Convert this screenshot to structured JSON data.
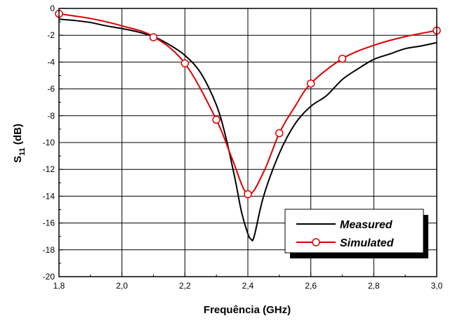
{
  "chart_data": {
    "type": "line",
    "title": "",
    "xlabel": "Frequência (GHz)",
    "ylabel_main": "S",
    "ylabel_sub": "11",
    "ylabel_unit": " (dB)",
    "xlim": [
      1.8,
      3.0
    ],
    "ylim": [
      -20,
      0
    ],
    "xticks": [
      1.8,
      2.0,
      2.2,
      2.4,
      2.6,
      2.8,
      3.0
    ],
    "xtick_labels": [
      "1,8",
      "2,0",
      "2,2",
      "2,4",
      "2,6",
      "2,8",
      "3,0"
    ],
    "yticks": [
      0,
      -2,
      -4,
      -6,
      -8,
      -10,
      -12,
      -14,
      -16,
      -18,
      -20
    ],
    "ytick_labels": [
      "0",
      "-2",
      "-4",
      "-6",
      "-8",
      "-10",
      "-12",
      "-14",
      "-16",
      "-18",
      "-20"
    ],
    "grid": true,
    "legend_position": "lower-right",
    "series": [
      {
        "name": "Measured",
        "color": "#000000",
        "marker": "none",
        "x": [
          1.8,
          1.85,
          1.9,
          1.95,
          2.0,
          2.05,
          2.1,
          2.15,
          2.2,
          2.25,
          2.3,
          2.33,
          2.36,
          2.38,
          2.4,
          2.41,
          2.42,
          2.45,
          2.5,
          2.55,
          2.6,
          2.65,
          2.7,
          2.75,
          2.8,
          2.85,
          2.9,
          2.95,
          3.0
        ],
        "y": [
          -0.8,
          -0.9,
          -1.05,
          -1.3,
          -1.5,
          -1.75,
          -2.1,
          -2.7,
          -3.5,
          -4.8,
          -7.2,
          -9.6,
          -12.8,
          -15.2,
          -16.8,
          -17.2,
          -17.0,
          -14.0,
          -10.8,
          -8.6,
          -7.3,
          -6.5,
          -5.3,
          -4.5,
          -3.8,
          -3.4,
          -3.0,
          -2.8,
          -2.55
        ]
      },
      {
        "name": "Simulated",
        "color": "#dd0000",
        "marker": "circle",
        "x": [
          1.8,
          1.9,
          2.0,
          2.1,
          2.2,
          2.3,
          2.35,
          2.4,
          2.45,
          2.5,
          2.55,
          2.6,
          2.7,
          2.8,
          2.9,
          3.0
        ],
        "y": [
          -0.4,
          -0.75,
          -1.3,
          -2.1,
          -4.1,
          -8.3,
          -11.2,
          -13.85,
          -12.2,
          -9.3,
          -7.3,
          -5.6,
          -3.75,
          -2.75,
          -2.1,
          -1.65
        ],
        "marker_x": [
          1.8,
          2.1,
          2.2,
          2.3,
          2.4,
          2.5,
          2.6,
          2.7,
          3.0
        ],
        "marker_y": [
          -0.4,
          -2.15,
          -4.1,
          -8.3,
          -13.85,
          -9.3,
          -5.6,
          -3.75,
          -1.65
        ]
      }
    ]
  }
}
